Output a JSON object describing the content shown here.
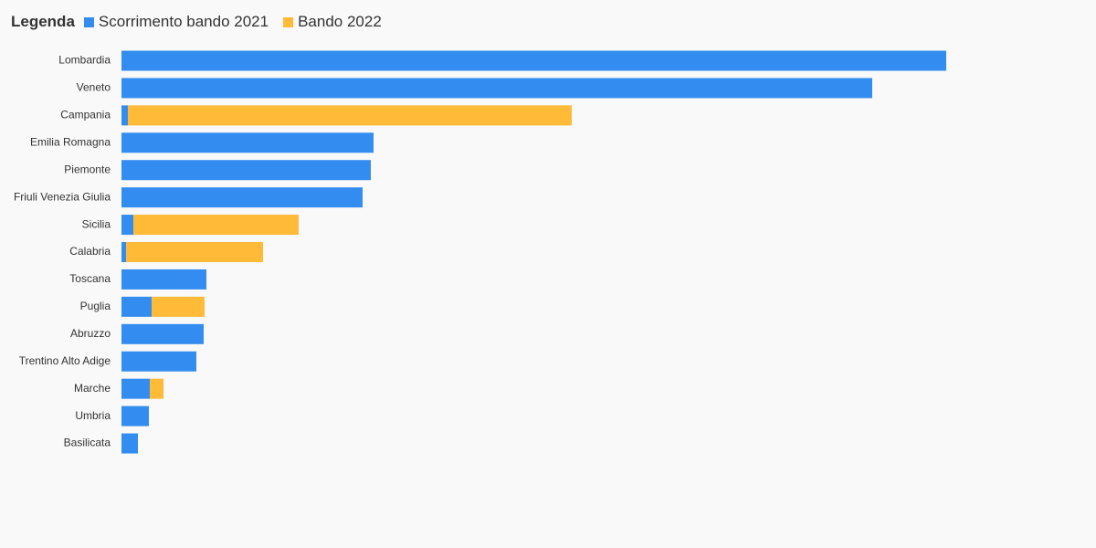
{
  "chart_data": {
    "type": "bar",
    "orientation": "horizontal",
    "stacked": true,
    "legend": {
      "title": "Legenda",
      "placement": "top-left"
    },
    "categories": [
      "Lombardia",
      "Veneto",
      "Campania",
      "Emilia Romagna",
      "Piemonte",
      "Friuli Venezia Giulia",
      "Sicilia",
      "Calabria",
      "Toscana",
      "Puglia",
      "Abruzzo",
      "Trentino Alto Adige",
      "Marche",
      "Umbria",
      "Basilicata"
    ],
    "series": [
      {
        "name": "Scorrimento bando 2021",
        "color": "#338df0",
        "values": [
          903,
          822,
          7,
          276,
          273,
          264,
          13,
          5,
          93,
          33,
          90,
          82,
          31,
          30,
          18
        ]
      },
      {
        "name": "Bando 2022",
        "color": "#ffba38",
        "values": [
          0,
          0,
          486,
          0,
          0,
          0,
          181,
          150,
          0,
          58,
          0,
          0,
          15,
          0,
          0
        ]
      }
    ],
    "xlim": [
      0,
      1000
    ],
    "grid": false,
    "xaxis_visible": false
  }
}
